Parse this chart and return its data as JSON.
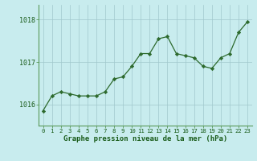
{
  "hours": [
    0,
    1,
    2,
    3,
    4,
    5,
    6,
    7,
    8,
    9,
    10,
    11,
    12,
    13,
    14,
    15,
    16,
    17,
    18,
    19,
    20,
    21,
    22,
    23
  ],
  "pressure": [
    1015.85,
    1016.2,
    1016.3,
    1016.25,
    1016.2,
    1016.2,
    1016.2,
    1016.3,
    1016.6,
    1016.65,
    1016.9,
    1017.2,
    1017.2,
    1017.55,
    1017.6,
    1017.2,
    1017.15,
    1017.1,
    1016.9,
    1016.85,
    1017.1,
    1017.2,
    1017.7,
    1017.95
  ],
  "line_color": "#2d6a2d",
  "marker_color": "#2d6a2d",
  "bg_color": "#c8ecee",
  "grid_color": "#a0c8cc",
  "xlabel": "Graphe pression niveau de la mer (hPa)",
  "xlabel_color": "#1a5c1a",
  "yticks": [
    1016,
    1017,
    1018
  ],
  "ylim": [
    1015.5,
    1018.35
  ],
  "xlim": [
    -0.5,
    23.5
  ],
  "xtick_labels": [
    "0",
    "1",
    "2",
    "3",
    "4",
    "5",
    "6",
    "7",
    "8",
    "9",
    "10",
    "11",
    "12",
    "13",
    "14",
    "15",
    "16",
    "17",
    "18",
    "19",
    "20",
    "21",
    "22",
    "23"
  ]
}
